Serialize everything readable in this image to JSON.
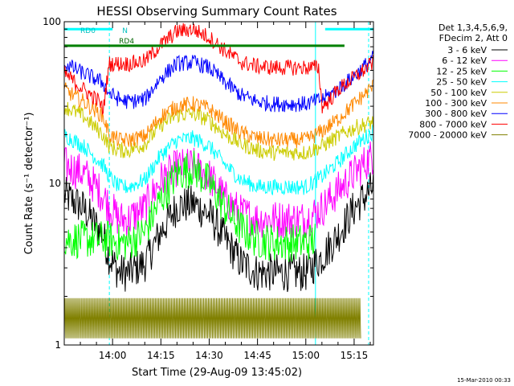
{
  "chart_data": {
    "type": "line",
    "title": "HESSI Observing Summary Count Rates",
    "xlabel": "Start Time (29-Aug-09 13:45:02)",
    "ylabel": "Count Rate (s⁻¹ detector⁻¹)",
    "x_unit": "minutes after 13:45:02",
    "xlim": [
      0,
      96
    ],
    "ylim": [
      1,
      100
    ],
    "yscale": "log",
    "y_ticks": [
      {
        "value": 1,
        "label": "1"
      },
      {
        "value": 10,
        "label": "10"
      },
      {
        "value": 100,
        "label": "100"
      }
    ],
    "x_ticks": [
      {
        "value": 15,
        "label": "14:00"
      },
      {
        "value": 30,
        "label": "14:15"
      },
      {
        "value": 45,
        "label": "14:30"
      },
      {
        "value": 60,
        "label": "14:45"
      },
      {
        "value": 75,
        "label": "15:00"
      },
      {
        "value": 90,
        "label": "15:15"
      }
    ],
    "legend_header": [
      "Det 1,3,4,5,6,9,",
      "FDecim 2, Att 0"
    ],
    "legend_position": "right",
    "series": [
      {
        "name": "3 - 6 keV",
        "color": "#000000",
        "x": [
          0,
          6,
          12,
          14,
          17,
          20,
          25,
          30,
          35,
          40,
          45,
          50,
          55,
          60,
          65,
          70,
          75,
          80,
          85,
          90,
          96
        ],
        "y": [
          8.5,
          7,
          4.8,
          3.5,
          2.8,
          2.8,
          3.2,
          5,
          7.2,
          7.5,
          6.4,
          4.5,
          3.2,
          2.8,
          2.8,
          2.8,
          2.8,
          3.5,
          4.8,
          7,
          9.5
        ]
      },
      {
        "name": "6 - 12 keV",
        "color": "#ff00ff",
        "x": [
          0,
          6,
          12,
          14,
          17,
          20,
          25,
          30,
          35,
          40,
          45,
          50,
          55,
          60,
          65,
          70,
          75,
          80,
          85,
          90,
          96
        ],
        "y": [
          13,
          11.5,
          8.5,
          7.2,
          6,
          6,
          7,
          10.5,
          12.5,
          12.8,
          11,
          8,
          6.5,
          6,
          6,
          6,
          6,
          7,
          9,
          11.5,
          15
        ]
      },
      {
        "name": "12 - 25 keV",
        "color": "#00ff00",
        "x": [
          0,
          14,
          17,
          20,
          25,
          30,
          35,
          40,
          45,
          50,
          55,
          60,
          65,
          70,
          75,
          78
        ],
        "y": [
          4.5,
          4.5,
          4.3,
          4.3,
          5,
          8,
          11.5,
          12.5,
          10,
          7,
          5.2,
          4.5,
          4.3,
          4.3,
          4.3,
          4.5
        ]
      },
      {
        "name": "25 - 50 keV",
        "color": "#00ffff",
        "x": [
          0,
          6,
          12,
          14,
          17,
          20,
          25,
          30,
          35,
          40,
          45,
          50,
          55,
          60,
          65,
          70,
          75,
          80,
          85,
          90,
          96
        ],
        "y": [
          20,
          17,
          13,
          11,
          9.5,
          9.5,
          10.5,
          15,
          18.5,
          19,
          17,
          13,
          10.5,
          9.5,
          9.5,
          9.5,
          9.5,
          11,
          13.5,
          17,
          21
        ]
      },
      {
        "name": "50 - 100 keV",
        "color": "#cccc00",
        "x": [
          0,
          6,
          12,
          14,
          17,
          20,
          25,
          30,
          35,
          40,
          45,
          50,
          55,
          60,
          65,
          70,
          75,
          80,
          85,
          90,
          96
        ],
        "y": [
          30,
          26,
          20,
          17,
          16,
          16,
          17.5,
          23,
          26.5,
          27,
          24.5,
          20,
          17.5,
          16,
          15.5,
          15.5,
          15.5,
          17,
          19.5,
          22,
          24
        ]
      },
      {
        "name": "100 - 300 keV",
        "color": "#ff8800",
        "x": [
          0,
          6,
          12,
          14,
          17,
          20,
          25,
          30,
          35,
          40,
          45,
          50,
          55,
          60,
          65,
          70,
          75,
          80,
          85,
          90,
          96
        ],
        "y": [
          38,
          32,
          26,
          20,
          18.5,
          18.5,
          19.5,
          26,
          30,
          31,
          29,
          24,
          20.5,
          19,
          18.5,
          18.5,
          18.5,
          21,
          25,
          31,
          40
        ]
      },
      {
        "name": "300 - 800 keV",
        "color": "#0000ff",
        "x": [
          0,
          6,
          12,
          14,
          17,
          20,
          25,
          30,
          35,
          40,
          45,
          50,
          55,
          60,
          65,
          70,
          75,
          80,
          85,
          90,
          96
        ],
        "y": [
          55,
          48,
          42,
          36,
          33,
          32,
          33,
          45,
          55,
          56,
          52,
          42,
          35,
          32,
          31,
          31,
          31,
          33,
          38,
          46,
          60
        ]
      },
      {
        "name": "800 - 7000 keV",
        "color": "#ff0000",
        "x": [
          0,
          6,
          11,
          12,
          14,
          17,
          20,
          25,
          30,
          35,
          40,
          45,
          50,
          55,
          60,
          65,
          70,
          75,
          79,
          80,
          82,
          85,
          90,
          96
        ],
        "y": [
          48,
          38,
          32,
          28,
          55,
          55,
          55,
          57,
          72,
          87,
          90,
          80,
          66,
          56,
          53,
          52,
          52,
          52,
          52,
          30,
          32,
          38,
          45,
          56
        ]
      },
      {
        "name": "7000 - 20000 keV",
        "color": "#808000",
        "x": [
          0,
          1,
          2,
          3,
          4,
          5,
          6,
          85,
          86,
          87,
          88,
          89,
          90,
          91,
          92
        ],
        "y": [
          1.3,
          2.0,
          1.2,
          1.9,
          1.1,
          2.0,
          1.3,
          1.3,
          1.8,
          1.2,
          2.0,
          1.1,
          1.9,
          1.3,
          1.9
        ]
      }
    ],
    "annotations": [
      {
        "label": "RD0",
        "color": "#00ffff",
        "x_start": 0,
        "x_end": 96,
        "y": 90,
        "gap": [
          15,
          81
        ],
        "text_at": 5
      },
      {
        "label": "N",
        "color": "#00ffff",
        "x_start": 0,
        "x_end": 96,
        "y": 90,
        "text_at": 18,
        "text_only": true
      },
      {
        "label": "RD4",
        "color": "#008000",
        "x_start": 0,
        "x_end": 87,
        "y": 71,
        "text_at": 17
      }
    ],
    "markers": [
      {
        "x": 0,
        "color": "#00ffff",
        "style": "solid"
      },
      {
        "x": 14,
        "color": "#00ffff",
        "style": "dashed"
      },
      {
        "x": 78,
        "color": "#00ffff",
        "style": "solid"
      },
      {
        "x": 94.5,
        "color": "#00ffff",
        "style": "dashed"
      }
    ]
  },
  "footer": {
    "timestamp": "15-Mar-2010 00:33"
  }
}
